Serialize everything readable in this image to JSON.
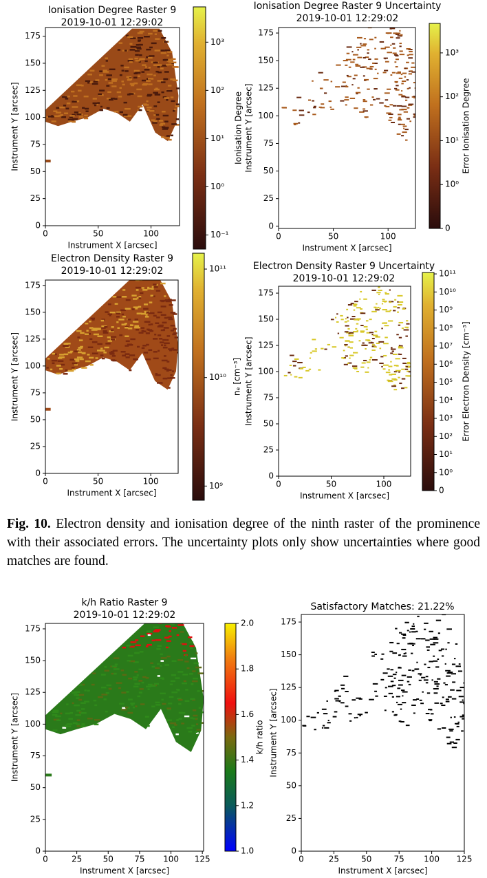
{
  "panels": [
    {
      "title": "Ionisation Degree Raster 9",
      "subtitle": "2019-10-01 12:29:02",
      "xlabel": "Instrument X [arcsec]",
      "ylabel": "Instrument Y [arcsec]",
      "xlim": [
        0,
        127
      ],
      "ylim": [
        0,
        183
      ],
      "xticks": [
        0,
        50,
        100
      ],
      "yticks": [
        0,
        25,
        50,
        75,
        100,
        125,
        150,
        175
      ],
      "colorbar": {
        "label": "Ionisation Degree",
        "scale": "log",
        "lim": [
          0.051,
          5400
        ],
        "ticks": [
          {
            "value": 0.1,
            "label": "10⁻¹"
          },
          {
            "value": 1,
            "label": "10⁰"
          },
          {
            "value": 10,
            "label": "10¹"
          },
          {
            "value": 100,
            "label": "10²"
          },
          {
            "value": 1000,
            "label": "10³"
          }
        ]
      }
    },
    {
      "title": "Ionisation Degree Raster 9 Uncertainty",
      "subtitle": "2019-10-01 12:29:02",
      "xlabel": "Instrument X [arcsec]",
      "ylabel": "Instrument Y [arcsec]",
      "xlim": [
        0,
        125
      ],
      "ylim": [
        -2,
        180
      ],
      "xticks": [
        0,
        50,
        100
      ],
      "yticks": [
        0,
        25,
        50,
        75,
        100,
        125,
        150,
        175
      ],
      "colorbar": {
        "label": "Error Ionisation Degree",
        "scale": "symlog",
        "lim": [
          0,
          4700
        ],
        "ticks": [
          0,
          {
            "value": 1,
            "label": "10⁰"
          },
          {
            "value": 10,
            "label": "10¹"
          },
          {
            "value": 100,
            "label": "10²"
          },
          {
            "value": 1000,
            "label": "10³"
          }
        ]
      }
    },
    {
      "title": "Electron Density Raster 9",
      "subtitle": "2019-10-01 12:29:02",
      "xlabel": "Instrument X [arcsec]",
      "ylabel": "Instrument Y [arcsec]",
      "xlim": [
        0,
        126
      ],
      "ylim": [
        0,
        180
      ],
      "xticks": [
        0,
        50,
        100
      ],
      "yticks": [
        0,
        25,
        50,
        75,
        100,
        125,
        150,
        175
      ],
      "colorbar": {
        "label": "nₑ [cm⁻³]",
        "scale": "log",
        "lim": [
          740000000,
          140000000000
        ],
        "ticks": [
          {
            "value": 1000000000,
            "label": "10⁹"
          },
          {
            "value": 10000000000,
            "label": "10¹⁰"
          },
          {
            "value": 100000000000,
            "label": "10¹¹"
          }
        ]
      }
    },
    {
      "title": "Electron Density Raster 9 Uncertainty",
      "subtitle": "2019-10-01 12:29:02",
      "xlabel": "Instrument X [arcsec]",
      "ylabel": "Instrument Y [arcsec]",
      "xlim": [
        0,
        125.5
      ],
      "ylim": [
        0,
        181.6
      ],
      "xticks": [
        0,
        50,
        100
      ],
      "yticks": [
        0,
        25,
        50,
        75,
        100,
        125,
        150,
        175
      ],
      "colorbar": {
        "label": "Error Electron Density [cm⁻³]",
        "scale": "symlog",
        "lim": [
          0,
          120000000000
        ],
        "ticks": [
          0,
          {
            "value": 1,
            "label": "10⁰"
          },
          {
            "value": 10,
            "label": "10¹"
          },
          {
            "value": 100,
            "label": "10²"
          },
          {
            "value": 1000,
            "label": "10³"
          },
          {
            "value": 10000,
            "label": "10⁴"
          },
          {
            "value": 100000,
            "label": "10⁵"
          },
          {
            "value": 1000000,
            "label": "10⁶"
          },
          {
            "value": 10000000,
            "label": "10⁷"
          },
          {
            "value": 100000000,
            "label": "10⁸"
          },
          {
            "value": 1000000000,
            "label": "10⁹"
          },
          {
            "value": 10000000000,
            "label": "10¹⁰"
          },
          {
            "value": 100000000000,
            "label": "10¹¹"
          }
        ]
      }
    },
    {
      "title": "k/h Ratio Raster 9",
      "subtitle": "2019-10-01 12:29:02",
      "xlabel": "Instrument X [arcsec]",
      "ylabel": "Instrument Y [arcsec]",
      "xlim": [
        0,
        126
      ],
      "ylim": [
        0,
        179.3
      ],
      "xticks": [
        0,
        25,
        50,
        75,
        100,
        125
      ],
      "yticks": [
        0,
        25,
        50,
        75,
        100,
        125,
        150,
        175
      ],
      "colorbar": {
        "label": "k/h ratio",
        "scale": "linear",
        "lim": [
          1,
          2
        ],
        "ticks": [
          {
            "value": 1,
            "label": "1.0"
          },
          {
            "value": 1.2,
            "label": "1.2"
          },
          {
            "value": 1.4,
            "label": "1.4"
          },
          {
            "value": 1.6,
            "label": "1.6"
          },
          {
            "value": 1.8,
            "label": "1.8"
          },
          {
            "value": 2,
            "label": "2.0"
          }
        ]
      }
    },
    {
      "title": "Satisfactory Matches: 21.22%",
      "xlabel": "Instrument X [arcsec]",
      "ylabel": "Instrument Y [arcsec]",
      "xlim": [
        0,
        125
      ],
      "ylim": [
        0,
        180.8
      ],
      "xticks": [
        0,
        25,
        50,
        75,
        100,
        125
      ],
      "yticks": [
        0,
        25,
        50,
        75,
        100,
        125,
        150,
        175
      ]
    }
  ],
  "caption": {
    "label": "Fig. 10.",
    "text": "Electron density and ionisation degree of the ninth raster of the prominence with their associated errors. The uncertainty plots only show uncertainties where good matches are found."
  }
}
